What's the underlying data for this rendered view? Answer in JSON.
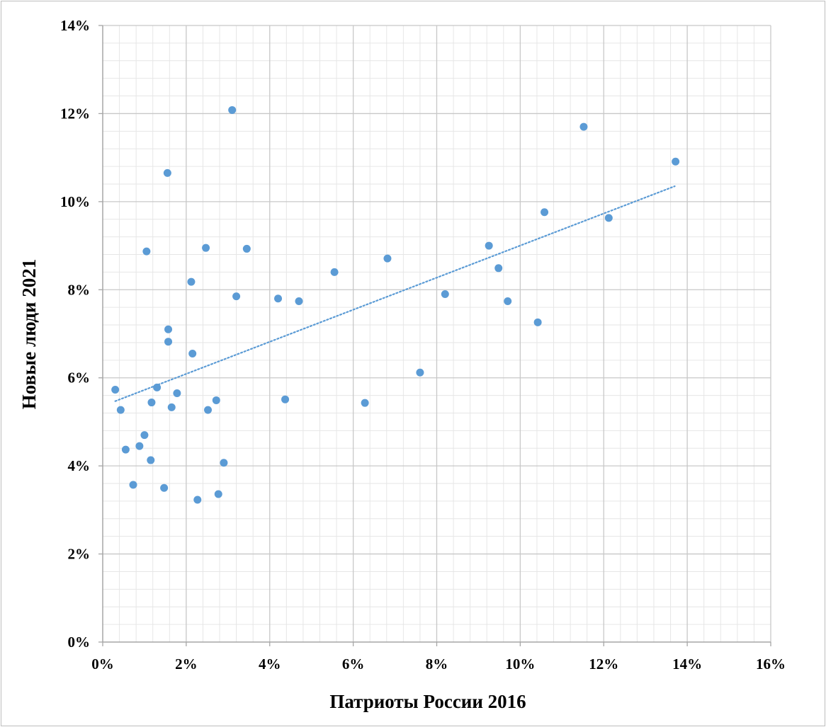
{
  "chart_data": {
    "type": "scatter",
    "title": "",
    "xlabel": "Патриоты России 2016",
    "ylabel": "Новые люди 2021",
    "xlim": [
      0,
      16
    ],
    "ylim": [
      0,
      14
    ],
    "x_ticks": [
      "0%",
      "2%",
      "4%",
      "6%",
      "8%",
      "10%",
      "12%",
      "14%",
      "16%"
    ],
    "y_ticks": [
      "0%",
      "2%",
      "4%",
      "6%",
      "8%",
      "10%",
      "12%",
      "14%"
    ],
    "grid": true,
    "legend": "none",
    "marker_color": "#5b9bd5",
    "trendline": {
      "type": "linear",
      "style": "dotted",
      "from": [
        0.3,
        5.47
      ],
      "to": [
        13.7,
        10.35
      ]
    },
    "points": [
      {
        "x": 0.3,
        "y": 5.73
      },
      {
        "x": 0.43,
        "y": 5.27
      },
      {
        "x": 0.55,
        "y": 4.37
      },
      {
        "x": 0.73,
        "y": 3.57
      },
      {
        "x": 0.88,
        "y": 4.45
      },
      {
        "x": 1.0,
        "y": 4.7
      },
      {
        "x": 1.05,
        "y": 8.87
      },
      {
        "x": 1.15,
        "y": 4.13
      },
      {
        "x": 1.17,
        "y": 5.44
      },
      {
        "x": 1.3,
        "y": 5.78
      },
      {
        "x": 1.47,
        "y": 3.5
      },
      {
        "x": 1.55,
        "y": 10.65
      },
      {
        "x": 1.57,
        "y": 7.1
      },
      {
        "x": 1.57,
        "y": 6.82
      },
      {
        "x": 1.65,
        "y": 5.33
      },
      {
        "x": 1.78,
        "y": 5.65
      },
      {
        "x": 2.12,
        "y": 8.18
      },
      {
        "x": 2.15,
        "y": 6.55
      },
      {
        "x": 2.27,
        "y": 3.23
      },
      {
        "x": 2.47,
        "y": 8.95
      },
      {
        "x": 2.52,
        "y": 5.27
      },
      {
        "x": 2.72,
        "y": 5.49
      },
      {
        "x": 2.77,
        "y": 3.36
      },
      {
        "x": 2.9,
        "y": 4.07
      },
      {
        "x": 3.1,
        "y": 12.08
      },
      {
        "x": 3.2,
        "y": 7.85
      },
      {
        "x": 3.45,
        "y": 8.93
      },
      {
        "x": 4.2,
        "y": 7.8
      },
      {
        "x": 4.37,
        "y": 5.51
      },
      {
        "x": 4.7,
        "y": 7.74
      },
      {
        "x": 5.55,
        "y": 8.4
      },
      {
        "x": 6.28,
        "y": 5.43
      },
      {
        "x": 6.82,
        "y": 8.71
      },
      {
        "x": 7.6,
        "y": 6.12
      },
      {
        "x": 8.2,
        "y": 7.9
      },
      {
        "x": 9.25,
        "y": 9.0
      },
      {
        "x": 9.48,
        "y": 8.49
      },
      {
        "x": 9.7,
        "y": 7.74
      },
      {
        "x": 10.42,
        "y": 7.26
      },
      {
        "x": 10.58,
        "y": 9.76
      },
      {
        "x": 11.52,
        "y": 11.7
      },
      {
        "x": 12.12,
        "y": 9.63
      },
      {
        "x": 13.72,
        "y": 10.91
      }
    ]
  }
}
